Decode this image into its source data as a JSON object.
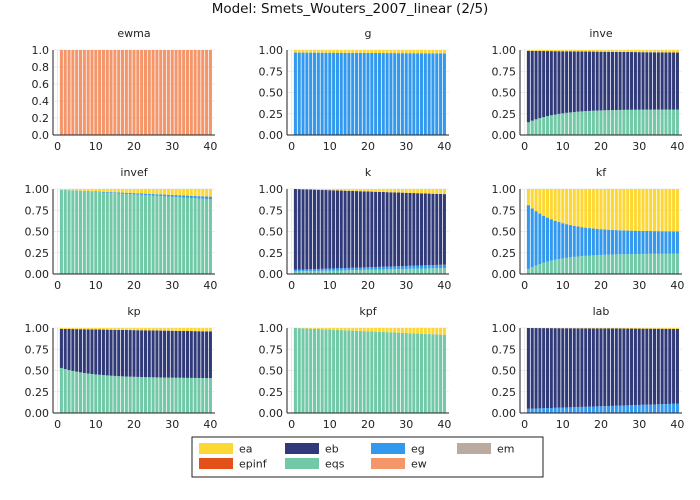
{
  "figure_title": "Model: Smets_Wouters_2007_linear  (2/5)",
  "colors": {
    "ea": "#FDD835",
    "eb": "#313A78",
    "eg": "#3399EE",
    "em": "#BBAAA0",
    "epinf": "#E3501A",
    "eqs": "#71C9A8",
    "ew": "#F4956A"
  },
  "chart_data": [
    {
      "type": "bar",
      "stacked": true,
      "title": "ewma",
      "x_range": [
        1,
        40
      ],
      "xticks": [
        0,
        10,
        20,
        30,
        40
      ],
      "yticks": [
        "0.0",
        "0.2",
        "0.4",
        "0.6",
        "0.8",
        "1.0"
      ],
      "ylim": [
        0,
        1
      ],
      "series": [
        {
          "name": "ew",
          "start": 1,
          "end": 1
        }
      ]
    },
    {
      "type": "bar",
      "stacked": true,
      "title": "g",
      "x_range": [
        1,
        40
      ],
      "xticks": [
        0,
        10,
        20,
        30,
        40
      ],
      "yticks": [
        "0.00",
        "0.25",
        "0.50",
        "0.75",
        "1.00"
      ],
      "ylim": [
        0,
        1
      ],
      "series": [
        {
          "name": "eg",
          "start": 0.97,
          "end": 0.96
        },
        {
          "name": "ea",
          "start": 0.03,
          "end": 0.04
        }
      ]
    },
    {
      "type": "bar",
      "stacked": true,
      "title": "inve",
      "x_range": [
        1,
        40
      ],
      "xticks": [
        0,
        10,
        20,
        30,
        40
      ],
      "yticks": [
        "0.00",
        "0.25",
        "0.50",
        "0.75",
        "1.00"
      ],
      "ylim": [
        0,
        1
      ],
      "series": [
        {
          "name": "eqs",
          "start": 0.15,
          "end": 0.3,
          "curve": "sat"
        },
        {
          "name": "eb",
          "start": 0.84,
          "end": 0.67,
          "curve": "sat"
        },
        {
          "name": "ea",
          "start": 0.01,
          "end": 0.03
        }
      ]
    },
    {
      "type": "bar",
      "stacked": true,
      "title": "invef",
      "x_range": [
        1,
        40
      ],
      "xticks": [
        0,
        10,
        20,
        30,
        40
      ],
      "yticks": [
        "0.00",
        "0.25",
        "0.50",
        "0.75",
        "1.00"
      ],
      "ylim": [
        0,
        1
      ],
      "series": [
        {
          "name": "eqs",
          "start": 0.99,
          "end": 0.88
        },
        {
          "name": "eg",
          "start": 0.0,
          "end": 0.03
        },
        {
          "name": "ea",
          "start": 0.01,
          "end": 0.09
        }
      ]
    },
    {
      "type": "bar",
      "stacked": true,
      "title": "k",
      "x_range": [
        1,
        40
      ],
      "xticks": [
        0,
        10,
        20,
        30,
        40
      ],
      "yticks": [
        "0.00",
        "0.25",
        "0.50",
        "0.75",
        "1.00"
      ],
      "ylim": [
        0,
        1
      ],
      "series": [
        {
          "name": "eqs",
          "start": 0.03,
          "end": 0.07
        },
        {
          "name": "eg",
          "start": 0.02,
          "end": 0.04
        },
        {
          "name": "eb",
          "start": 0.95,
          "end": 0.83
        },
        {
          "name": "ea",
          "start": 0.0,
          "end": 0.06
        }
      ]
    },
    {
      "type": "bar",
      "stacked": true,
      "title": "kf",
      "x_range": [
        1,
        40
      ],
      "xticks": [
        0,
        10,
        20,
        30,
        40
      ],
      "yticks": [
        "0.00",
        "0.25",
        "0.50",
        "0.75",
        "1.00"
      ],
      "ylim": [
        0,
        1
      ],
      "series": [
        {
          "name": "eqs",
          "start": 0.06,
          "end": 0.24,
          "curve": "sat"
        },
        {
          "name": "eg",
          "start": 0.75,
          "end": 0.26,
          "curve": "sat"
        },
        {
          "name": "ea",
          "start": 0.19,
          "end": 0.5,
          "curve": "sat"
        }
      ]
    },
    {
      "type": "bar",
      "stacked": true,
      "title": "kp",
      "x_range": [
        1,
        40
      ],
      "xticks": [
        0,
        10,
        20,
        30,
        40
      ],
      "yticks": [
        "0.00",
        "0.25",
        "0.50",
        "0.75",
        "1.00"
      ],
      "ylim": [
        0,
        1
      ],
      "series": [
        {
          "name": "eqs",
          "start": 0.53,
          "end": 0.41,
          "curve": "sat"
        },
        {
          "name": "eb",
          "start": 0.46,
          "end": 0.55,
          "curve": "sat"
        },
        {
          "name": "ea",
          "start": 0.01,
          "end": 0.04
        }
      ]
    },
    {
      "type": "bar",
      "stacked": true,
      "title": "kpf",
      "x_range": [
        1,
        40
      ],
      "xticks": [
        0,
        10,
        20,
        30,
        40
      ],
      "yticks": [
        "0.00",
        "0.25",
        "0.50",
        "0.75",
        "1.00"
      ],
      "ylim": [
        0,
        1
      ],
      "series": [
        {
          "name": "eqs",
          "start": 1.0,
          "end": 0.92
        },
        {
          "name": "ea",
          "start": 0.0,
          "end": 0.08
        }
      ]
    },
    {
      "type": "bar",
      "stacked": true,
      "title": "lab",
      "x_range": [
        1,
        40
      ],
      "xticks": [
        0,
        10,
        20,
        30,
        40
      ],
      "yticks": [
        "0.00",
        "0.25",
        "0.50",
        "0.75",
        "1.00"
      ],
      "ylim": [
        0,
        1
      ],
      "series": [
        {
          "name": "eg",
          "start": 0.05,
          "end": 0.11
        },
        {
          "name": "eb",
          "start": 0.95,
          "end": 0.88
        },
        {
          "name": "ea",
          "start": 0.0,
          "end": 0.01
        }
      ]
    }
  ],
  "legend": {
    "position": "bottom-center",
    "entries": [
      {
        "key": "ea",
        "label": "ea"
      },
      {
        "key": "eb",
        "label": "eb"
      },
      {
        "key": "eg",
        "label": "eg"
      },
      {
        "key": "em",
        "label": "em"
      },
      {
        "key": "epinf",
        "label": "epinf"
      },
      {
        "key": "eqs",
        "label": "eqs"
      },
      {
        "key": "ew",
        "label": "ew"
      }
    ]
  }
}
